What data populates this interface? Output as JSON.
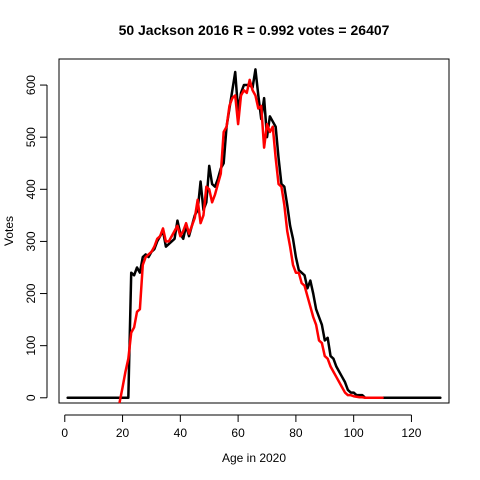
{
  "chart_data": {
    "type": "line",
    "title": "50 Jackson 2016 R = 0.992 votes = 26407",
    "xlabel": "Age in 2020",
    "ylabel": "Votes",
    "xlim": [
      -2,
      133
    ],
    "ylim": [
      -10,
      650
    ],
    "xticks": [
      0,
      20,
      40,
      60,
      80,
      100,
      120
    ],
    "yticks": [
      0,
      100,
      200,
      300,
      400,
      500,
      600
    ],
    "grid": false,
    "series": [
      {
        "color": "#000000",
        "x": [
          1,
          2,
          3,
          4,
          5,
          6,
          7,
          8,
          9,
          10,
          11,
          12,
          13,
          14,
          15,
          16,
          17,
          18,
          19,
          20,
          21,
          22,
          23,
          24,
          25,
          26,
          27,
          28,
          29,
          30,
          31,
          32,
          33,
          34,
          35,
          36,
          37,
          38,
          39,
          40,
          41,
          42,
          43,
          44,
          45,
          46,
          47,
          48,
          49,
          50,
          51,
          52,
          53,
          54,
          55,
          56,
          57,
          58,
          59,
          60,
          61,
          62,
          63,
          64,
          65,
          66,
          67,
          68,
          69,
          70,
          71,
          72,
          73,
          74,
          75,
          76,
          77,
          78,
          79,
          80,
          81,
          82,
          83,
          84,
          85,
          86,
          87,
          88,
          89,
          90,
          91,
          92,
          93,
          94,
          95,
          96,
          97,
          98,
          99,
          100,
          101,
          102,
          103,
          104,
          105,
          106,
          107,
          108,
          109,
          110,
          111,
          112,
          113,
          114,
          115,
          116,
          117,
          118,
          119,
          120,
          121,
          122,
          123,
          124,
          125,
          126,
          127,
          128,
          129,
          130
        ],
        "y": [
          0,
          0,
          0,
          0,
          0,
          0,
          0,
          0,
          0,
          0,
          0,
          0,
          0,
          0,
          0,
          0,
          0,
          0,
          0,
          0,
          0,
          0,
          240,
          235,
          250,
          240,
          270,
          275,
          270,
          280,
          285,
          300,
          310,
          320,
          290,
          295,
          300,
          305,
          340,
          315,
          305,
          330,
          310,
          330,
          350,
          360,
          415,
          360,
          375,
          445,
          410,
          405,
          420,
          440,
          450,
          520,
          555,
          590,
          625,
          550,
          585,
          600,
          600,
          600,
          595,
          630,
          580,
          535,
          575,
          500,
          540,
          530,
          520,
          460,
          410,
          405,
          370,
          330,
          305,
          270,
          245,
          240,
          235,
          210,
          225,
          200,
          170,
          155,
          140,
          110,
          115,
          80,
          75,
          60,
          50,
          40,
          30,
          15,
          10,
          10,
          5,
          5,
          5,
          0,
          0,
          0,
          0,
          0,
          0,
          0,
          0,
          0,
          0,
          0,
          0,
          0,
          0,
          0,
          0,
          0,
          0,
          0,
          0,
          0,
          0,
          0,
          0,
          0,
          0,
          0
        ]
      },
      {
        "color": "#ff0000",
        "x": [
          19,
          20,
          21,
          22,
          23,
          24,
          25,
          26,
          27,
          28,
          29,
          30,
          31,
          32,
          33,
          34,
          35,
          36,
          37,
          38,
          39,
          40,
          41,
          42,
          43,
          44,
          45,
          46,
          47,
          48,
          49,
          50,
          51,
          52,
          53,
          54,
          55,
          56,
          57,
          58,
          59,
          60,
          61,
          62,
          63,
          64,
          65,
          66,
          67,
          68,
          69,
          70,
          71,
          72,
          73,
          74,
          75,
          76,
          77,
          78,
          79,
          80,
          81,
          82,
          83,
          84,
          85,
          86,
          87,
          88,
          89,
          90,
          91,
          92,
          93,
          94,
          95,
          96,
          97,
          98,
          99,
          100,
          101,
          102,
          103,
          104,
          105,
          106,
          107,
          108,
          109,
          110
        ],
        "y": [
          -8,
          20,
          50,
          75,
          125,
          135,
          165,
          170,
          255,
          270,
          275,
          280,
          290,
          305,
          310,
          325,
          300,
          300,
          310,
          320,
          330,
          310,
          320,
          335,
          315,
          330,
          345,
          380,
          335,
          350,
          405,
          400,
          375,
          390,
          410,
          430,
          510,
          520,
          560,
          575,
          580,
          525,
          580,
          590,
          585,
          610,
          590,
          580,
          555,
          560,
          480,
          525,
          510,
          520,
          460,
          410,
          405,
          370,
          320,
          290,
          255,
          240,
          240,
          220,
          215,
          195,
          175,
          155,
          140,
          110,
          105,
          80,
          75,
          60,
          50,
          40,
          30,
          20,
          10,
          5,
          5,
          3,
          2,
          1,
          1,
          0,
          0,
          0,
          0,
          0,
          0,
          0
        ]
      }
    ]
  }
}
